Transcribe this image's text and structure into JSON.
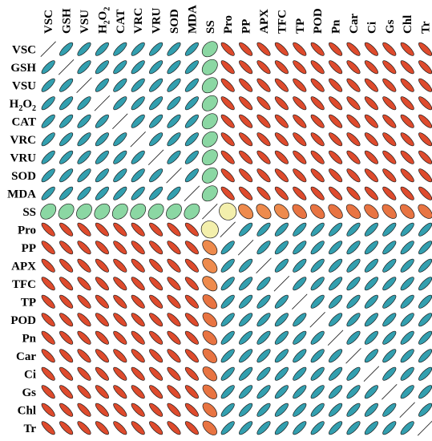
{
  "chart_data": {
    "type": "heatmap",
    "style": "ellipse correlation matrix",
    "variables": [
      "VSC",
      "GSH",
      "VSU",
      "H2O2",
      "CAT",
      "VRC",
      "VRU",
      "SOD",
      "MDA",
      "SS",
      "Pro",
      "PP",
      "APX",
      "TFC",
      "TP",
      "POD",
      "Pn",
      "Car",
      "Ci",
      "Gs",
      "Chl",
      "Tr"
    ],
    "row_labels": [
      "VSC",
      "GSH",
      "VSU",
      "H2O2",
      "CAT",
      "VRC",
      "VRU",
      "SOD",
      "MDA",
      "SS",
      "Pro",
      "PP",
      "APX",
      "TFC",
      "TP",
      "POD",
      "Pn",
      "Car",
      "Ci",
      "Gs",
      "Chl",
      "Tr"
    ],
    "column_labels": [
      "VSC",
      "GSH",
      "VSU",
      "H2O2",
      "CAT",
      "VRC",
      "VRU",
      "SOD",
      "MDA",
      "SS",
      "Pro",
      "PP",
      "APX",
      "TFC",
      "TP",
      "POD",
      "Pn",
      "Car",
      "Ci",
      "Gs",
      "Chl",
      "Tr"
    ],
    "value_range": [
      -1,
      1
    ],
    "color_scale": {
      "negative": "#d7301f",
      "mid_negative": "#f4a259",
      "zero": "#f3f7b5",
      "mid_positive": "#7fd3a1",
      "positive": "#1b8fb3"
    },
    "group_A": [
      "VSC",
      "GSH",
      "VSU",
      "H2O2",
      "CAT",
      "VRC",
      "VRU",
      "SOD",
      "MDA"
    ],
    "group_B": [
      "Pro",
      "PP",
      "APX",
      "TFC",
      "TP",
      "POD",
      "Pn",
      "Car",
      "Ci",
      "Gs",
      "Chl",
      "Tr"
    ],
    "special": "SS",
    "diagonal": 1.0
  }
}
